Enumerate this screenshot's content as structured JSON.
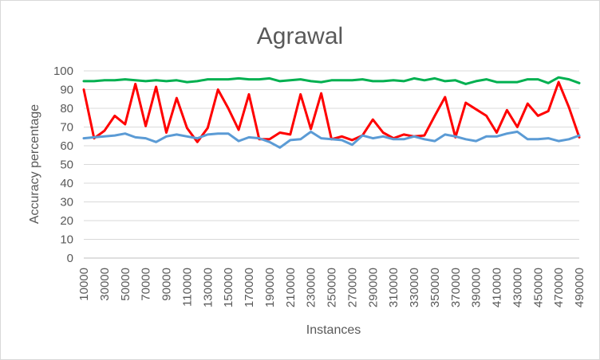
{
  "chart_data": {
    "type": "line",
    "title": "Agrawal",
    "xlabel": "Instances",
    "ylabel": "Accuracy percentage",
    "ylim": [
      0,
      100
    ],
    "yticks": [
      "0",
      "10",
      "20",
      "30",
      "40",
      "50",
      "60",
      "70",
      "80",
      "90",
      "100"
    ],
    "xticks": [
      "10000",
      "30000",
      "50000",
      "70000",
      "90000",
      "110000",
      "130000",
      "150000",
      "170000",
      "190000",
      "210000",
      "230000",
      "250000",
      "270000",
      "290000",
      "310000",
      "330000",
      "350000",
      "370000",
      "390000",
      "410000",
      "430000",
      "450000",
      "470000",
      "490000"
    ],
    "x": [
      10000,
      20000,
      30000,
      40000,
      50000,
      60000,
      70000,
      80000,
      90000,
      100000,
      110000,
      120000,
      130000,
      140000,
      150000,
      160000,
      170000,
      180000,
      190000,
      200000,
      210000,
      220000,
      230000,
      240000,
      250000,
      260000,
      270000,
      280000,
      290000,
      300000,
      310000,
      320000,
      330000,
      340000,
      350000,
      360000,
      370000,
      380000,
      390000,
      400000,
      410000,
      420000,
      430000,
      440000,
      450000,
      460000,
      470000,
      480000,
      490000
    ],
    "grid": "horizontal",
    "legend": "none",
    "series": [
      {
        "color": "#00b050",
        "values": [
          94.5,
          94.5,
          95,
          95,
          95.5,
          95,
          94.5,
          95,
          94.5,
          95,
          94,
          94.5,
          95.5,
          95.5,
          95.5,
          96,
          95.5,
          95.5,
          96,
          94.5,
          95,
          95.5,
          94.5,
          94,
          95,
          95,
          95,
          95.5,
          94.5,
          94.5,
          95,
          94.5,
          96,
          95,
          96,
          94.5,
          95,
          93,
          94.5,
          95.5,
          94,
          94,
          94,
          95.5,
          95.5,
          93.5,
          96.5,
          95.5,
          93.5
        ]
      },
      {
        "color": "#ff0000",
        "values": [
          90,
          64,
          68,
          76,
          71.5,
          93,
          70.5,
          91.5,
          67,
          85.5,
          69.5,
          62,
          69.5,
          90,
          80,
          68.5,
          87.5,
          63.5,
          63.5,
          67,
          66,
          87.5,
          69,
          88,
          63.5,
          65,
          63,
          65.5,
          74,
          67,
          64,
          66,
          65,
          65.5,
          76,
          86,
          64.5,
          83,
          79.5,
          76,
          67,
          79,
          70,
          82.5,
          76,
          78.5,
          94,
          80.5,
          64.5
        ]
      },
      {
        "color": "#5b9bd5",
        "values": [
          64,
          64.5,
          65,
          65.5,
          66.5,
          64.5,
          64,
          62,
          65,
          66,
          65,
          64,
          66,
          66.5,
          66.5,
          62.5,
          64.5,
          64,
          62,
          59,
          63,
          63.5,
          67.5,
          64,
          63.5,
          63,
          60.5,
          65.5,
          64,
          65,
          63.5,
          63.5,
          65,
          63.5,
          62.5,
          66,
          65,
          63.5,
          62.5,
          65,
          65,
          66.5,
          67.5,
          63.5,
          63.5,
          64,
          62.5,
          63.5,
          65.5
        ]
      }
    ]
  }
}
